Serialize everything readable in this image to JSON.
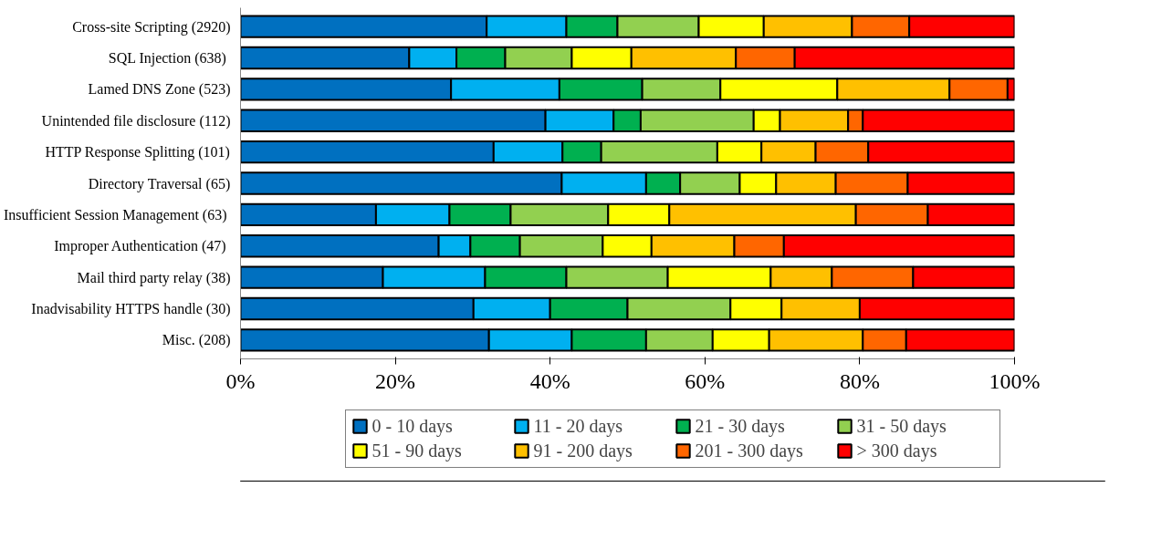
{
  "chart_data": {
    "type": "bar",
    "orientation": "horizontal",
    "stacked": true,
    "categories": [
      "Cross-site Scripting (2920)",
      "SQL Injection  (638)",
      "Lamed DNS Zone (523)",
      "Unintended file disclosure (112)",
      "HTTP Response Splitting (101)",
      "Directory Traversal (65)",
      "Insufficient Session Management  (63)",
      "Improper Authentication  (47)",
      "Mail third party relay (38)",
      "Inadvisability HTTPS handle (30)",
      "Misc. (208)"
    ],
    "series": [
      {
        "name": "0 - 10 days",
        "color": "#0070c0",
        "values": [
          31.8,
          21.8,
          27.2,
          39.4,
          32.7,
          41.5,
          17.5,
          25.6,
          18.4,
          30.1,
          32.1
        ]
      },
      {
        "name": "11 - 20 days",
        "color": "#00b0f0",
        "values": [
          10.3,
          6.1,
          14.0,
          8.8,
          8.9,
          10.9,
          9.5,
          4.1,
          13.2,
          9.9,
          10.7
        ]
      },
      {
        "name": "21 - 30 days",
        "color": "#00b050",
        "values": [
          6.6,
          6.3,
          10.7,
          3.5,
          5.0,
          4.4,
          7.9,
          6.4,
          10.5,
          10.0,
          9.6
        ]
      },
      {
        "name": "31 - 50 days",
        "color": "#92d050",
        "values": [
          10.5,
          8.6,
          10.1,
          14.6,
          15.0,
          7.7,
          12.6,
          10.7,
          13.1,
          13.3,
          8.6
        ]
      },
      {
        "name": "51 - 90 days",
        "color": "#ffff00",
        "values": [
          8.4,
          7.7,
          15.1,
          3.4,
          5.7,
          4.7,
          7.9,
          6.3,
          13.3,
          6.6,
          7.3
        ]
      },
      {
        "name": "91 - 200 days",
        "color": "#ffc000",
        "values": [
          11.4,
          13.5,
          14.5,
          8.8,
          7.0,
          7.7,
          24.1,
          10.7,
          7.9,
          10.1,
          12.1
        ]
      },
      {
        "name": "201 - 300 days",
        "color": "#ff6600",
        "values": [
          7.4,
          7.6,
          7.5,
          1.9,
          6.8,
          9.3,
          9.3,
          6.4,
          10.5,
          null,
          5.6
        ]
      },
      {
        "name": "> 300 days",
        "color": "#ff0000",
        "values": [
          13.6,
          28.4,
          0.9,
          19.6,
          18.9,
          13.8,
          11.2,
          29.8,
          13.1,
          20.0,
          14.0
        ]
      }
    ],
    "xlim": [
      0,
      100
    ],
    "xticks": [
      {
        "value": 0,
        "label": "0%"
      },
      {
        "value": 20,
        "label": "20%"
      },
      {
        "value": 40,
        "label": "40%"
      },
      {
        "value": 60,
        "label": "60%"
      },
      {
        "value": 80,
        "label": "80%"
      },
      {
        "value": 100,
        "label": "100%"
      }
    ],
    "legend": "bottom",
    "grid": false
  }
}
